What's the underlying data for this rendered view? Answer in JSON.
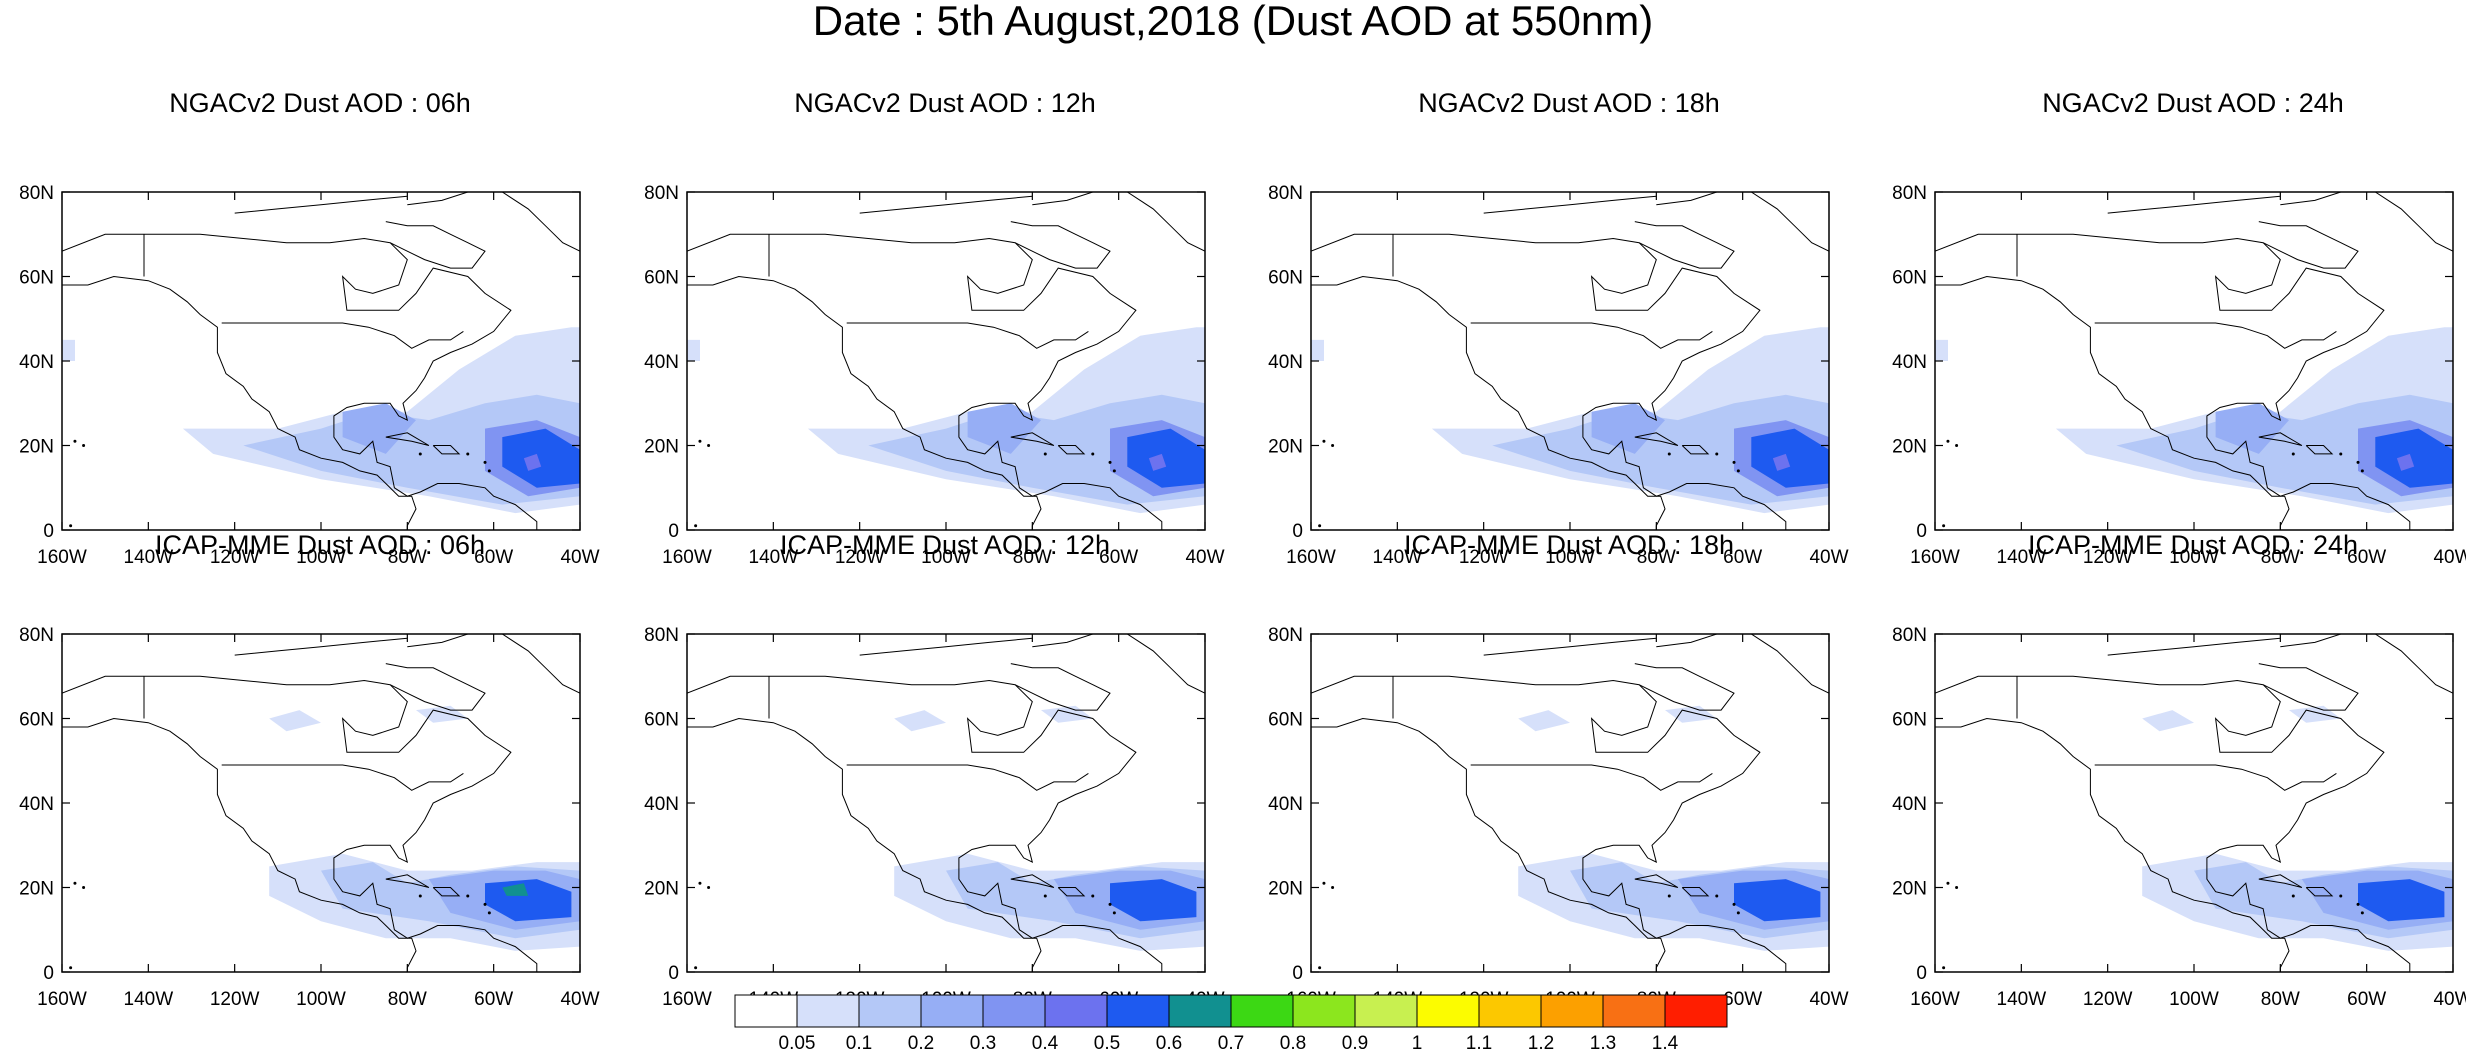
{
  "figure": {
    "title": "Date : 5th August,2018 (Dust AOD at 550nm)"
  },
  "axes": {
    "lon_ticks": [
      "160W",
      "140W",
      "120W",
      "100W",
      "80W",
      "60W",
      "40W"
    ],
    "lat_ticks": [
      "80N",
      "60N",
      "40N",
      "20N",
      "0"
    ],
    "lon_range": [
      -160,
      -40
    ],
    "lat_range": [
      0,
      80
    ]
  },
  "panels": [
    {
      "title": "NGACv2 Dust AOD : 06h",
      "model": "NGACv2",
      "forecast_hour": "06h"
    },
    {
      "title": "NGACv2 Dust AOD : 12h",
      "model": "NGACv2",
      "forecast_hour": "12h"
    },
    {
      "title": "NGACv2 Dust AOD : 18h",
      "model": "NGACv2",
      "forecast_hour": "18h"
    },
    {
      "title": "NGACv2 Dust AOD : 24h",
      "model": "NGACv2",
      "forecast_hour": "24h"
    },
    {
      "title": "ICAP-MME Dust AOD : 06h",
      "model": "ICAP-MME",
      "forecast_hour": "06h"
    },
    {
      "title": "ICAP-MME Dust AOD : 12h",
      "model": "ICAP-MME",
      "forecast_hour": "12h"
    },
    {
      "title": "ICAP-MME Dust AOD : 18h",
      "model": "ICAP-MME",
      "forecast_hour": "18h"
    },
    {
      "title": "ICAP-MME Dust AOD : 24h",
      "model": "ICAP-MME",
      "forecast_hour": "24h"
    }
  ],
  "colorbar": {
    "labels": [
      "0.05",
      "0.1",
      "0.2",
      "0.3",
      "0.4",
      "0.5",
      "0.6",
      "0.7",
      "0.8",
      "0.9",
      "1",
      "1.1",
      "1.2",
      "1.3",
      "1.4"
    ],
    "colors": [
      "#ffffff",
      "#d6e0fa",
      "#b4c8f7",
      "#96aef5",
      "#8094f2",
      "#6c72ef",
      "#1e5af0",
      "#119090",
      "#3cd814",
      "#8ce61e",
      "#c8f050",
      "#fcfc00",
      "#fcc800",
      "#fca000",
      "#f87014",
      "#ff1e00"
    ]
  }
}
